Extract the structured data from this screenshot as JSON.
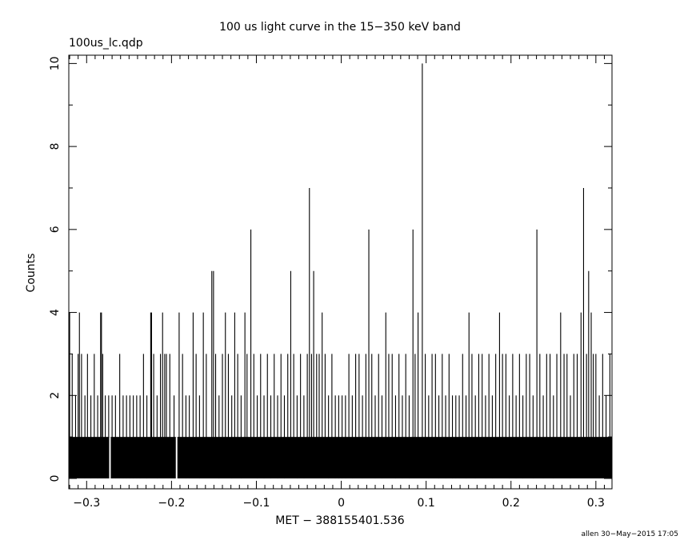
{
  "chart_data": {
    "type": "bar",
    "title": "100 us light curve in the 15−350 keV band",
    "file_label": "100us_lc.qdp",
    "xlabel": "MET − 388155401.536",
    "ylabel": "Counts",
    "footer": "allen 30−May−2015 17:05",
    "xlim": [
      -0.321,
      0.319
    ],
    "ylim": [
      -0.25,
      10.2
    ],
    "x_ticks": [
      {
        "value": -0.3,
        "label": "−0.3"
      },
      {
        "value": -0.2,
        "label": "−0.2"
      },
      {
        "value": -0.1,
        "label": "−0.1"
      },
      {
        "value": 0,
        "label": "0"
      },
      {
        "value": 0.1,
        "label": "0.1"
      },
      {
        "value": 0.2,
        "label": "0.2"
      },
      {
        "value": 0.3,
        "label": "0.3"
      }
    ],
    "y_ticks": [
      {
        "value": 0,
        "label": "0"
      },
      {
        "value": 2,
        "label": "2"
      },
      {
        "value": 4,
        "label": "4"
      },
      {
        "value": 6,
        "label": "6"
      },
      {
        "value": 8,
        "label": "8"
      },
      {
        "value": 10,
        "label": "10"
      }
    ],
    "bin_width": 0.0001,
    "baseline_counts": 1,
    "zero_count_bins": [
      -0.2725,
      -0.194
    ],
    "spikes": [
      {
        "x": -0.32,
        "y": 4
      },
      {
        "x": -0.317,
        "y": 3
      },
      {
        "x": -0.313,
        "y": 2
      },
      {
        "x": -0.31,
        "y": 3
      },
      {
        "x": -0.3085,
        "y": 4
      },
      {
        "x": -0.306,
        "y": 3
      },
      {
        "x": -0.302,
        "y": 2
      },
      {
        "x": -0.299,
        "y": 3
      },
      {
        "x": -0.295,
        "y": 2
      },
      {
        "x": -0.291,
        "y": 3
      },
      {
        "x": -0.287,
        "y": 2
      },
      {
        "x": -0.2835,
        "y": 4
      },
      {
        "x": -0.2825,
        "y": 4
      },
      {
        "x": -0.281,
        "y": 3
      },
      {
        "x": -0.278,
        "y": 2
      },
      {
        "x": -0.274,
        "y": 2
      },
      {
        "x": -0.27,
        "y": 2
      },
      {
        "x": -0.266,
        "y": 2
      },
      {
        "x": -0.261,
        "y": 3
      },
      {
        "x": -0.257,
        "y": 2
      },
      {
        "x": -0.253,
        "y": 2
      },
      {
        "x": -0.249,
        "y": 2
      },
      {
        "x": -0.245,
        "y": 2
      },
      {
        "x": -0.241,
        "y": 2
      },
      {
        "x": -0.237,
        "y": 2
      },
      {
        "x": -0.233,
        "y": 3
      },
      {
        "x": -0.229,
        "y": 2
      },
      {
        "x": -0.2245,
        "y": 4
      },
      {
        "x": -0.2235,
        "y": 4
      },
      {
        "x": -0.221,
        "y": 3
      },
      {
        "x": -0.217,
        "y": 2
      },
      {
        "x": -0.213,
        "y": 3
      },
      {
        "x": -0.2105,
        "y": 4
      },
      {
        "x": -0.208,
        "y": 3
      },
      {
        "x": -0.206,
        "y": 3
      },
      {
        "x": -0.202,
        "y": 3
      },
      {
        "x": -0.197,
        "y": 2
      },
      {
        "x": -0.191,
        "y": 4
      },
      {
        "x": -0.187,
        "y": 3
      },
      {
        "x": -0.183,
        "y": 2
      },
      {
        "x": -0.179,
        "y": 2
      },
      {
        "x": -0.1745,
        "y": 4
      },
      {
        "x": -0.171,
        "y": 3
      },
      {
        "x": -0.167,
        "y": 2
      },
      {
        "x": -0.1625,
        "y": 4
      },
      {
        "x": -0.159,
        "y": 3
      },
      {
        "x": -0.1525,
        "y": 5
      },
      {
        "x": -0.1505,
        "y": 5
      },
      {
        "x": -0.148,
        "y": 3
      },
      {
        "x": -0.144,
        "y": 2
      },
      {
        "x": -0.14,
        "y": 3
      },
      {
        "x": -0.1365,
        "y": 4
      },
      {
        "x": -0.133,
        "y": 3
      },
      {
        "x": -0.129,
        "y": 2
      },
      {
        "x": -0.1255,
        "y": 4
      },
      {
        "x": -0.122,
        "y": 3
      },
      {
        "x": -0.118,
        "y": 2
      },
      {
        "x": -0.1135,
        "y": 4
      },
      {
        "x": -0.111,
        "y": 3
      },
      {
        "x": -0.1065,
        "y": 6
      },
      {
        "x": -0.103,
        "y": 3
      },
      {
        "x": -0.099,
        "y": 2
      },
      {
        "x": -0.095,
        "y": 3
      },
      {
        "x": -0.091,
        "y": 2
      },
      {
        "x": -0.087,
        "y": 3
      },
      {
        "x": -0.083,
        "y": 2
      },
      {
        "x": -0.079,
        "y": 3
      },
      {
        "x": -0.075,
        "y": 2
      },
      {
        "x": -0.071,
        "y": 3
      },
      {
        "x": -0.067,
        "y": 2
      },
      {
        "x": -0.063,
        "y": 3
      },
      {
        "x": -0.0595,
        "y": 5
      },
      {
        "x": -0.056,
        "y": 3
      },
      {
        "x": -0.052,
        "y": 2
      },
      {
        "x": -0.048,
        "y": 3
      },
      {
        "x": -0.044,
        "y": 2
      },
      {
        "x": -0.04,
        "y": 3
      },
      {
        "x": -0.0375,
        "y": 7
      },
      {
        "x": -0.035,
        "y": 3
      },
      {
        "x": -0.0325,
        "y": 5
      },
      {
        "x": -0.029,
        "y": 3
      },
      {
        "x": -0.026,
        "y": 3
      },
      {
        "x": -0.0225,
        "y": 4
      },
      {
        "x": -0.019,
        "y": 3
      },
      {
        "x": -0.015,
        "y": 2
      },
      {
        "x": -0.011,
        "y": 3
      },
      {
        "x": -0.007,
        "y": 2
      },
      {
        "x": -0.003,
        "y": 2
      },
      {
        "x": 0.001,
        "y": 2
      },
      {
        "x": 0.005,
        "y": 2
      },
      {
        "x": 0.009,
        "y": 3
      },
      {
        "x": 0.013,
        "y": 2
      },
      {
        "x": 0.017,
        "y": 3
      },
      {
        "x": 0.021,
        "y": 3
      },
      {
        "x": 0.025,
        "y": 2
      },
      {
        "x": 0.029,
        "y": 3
      },
      {
        "x": 0.0325,
        "y": 6
      },
      {
        "x": 0.036,
        "y": 3
      },
      {
        "x": 0.04,
        "y": 2
      },
      {
        "x": 0.044,
        "y": 3
      },
      {
        "x": 0.048,
        "y": 2
      },
      {
        "x": 0.0525,
        "y": 4
      },
      {
        "x": 0.056,
        "y": 3
      },
      {
        "x": 0.06,
        "y": 3
      },
      {
        "x": 0.064,
        "y": 2
      },
      {
        "x": 0.068,
        "y": 3
      },
      {
        "x": 0.072,
        "y": 2
      },
      {
        "x": 0.076,
        "y": 3
      },
      {
        "x": 0.08,
        "y": 2
      },
      {
        "x": 0.0845,
        "y": 6
      },
      {
        "x": 0.087,
        "y": 3
      },
      {
        "x": 0.0905,
        "y": 4
      },
      {
        "x": 0.0955,
        "y": 10
      },
      {
        "x": 0.099,
        "y": 3
      },
      {
        "x": 0.103,
        "y": 2
      },
      {
        "x": 0.107,
        "y": 3
      },
      {
        "x": 0.111,
        "y": 3
      },
      {
        "x": 0.115,
        "y": 2
      },
      {
        "x": 0.119,
        "y": 3
      },
      {
        "x": 0.123,
        "y": 2
      },
      {
        "x": 0.127,
        "y": 3
      },
      {
        "x": 0.131,
        "y": 2
      },
      {
        "x": 0.135,
        "y": 2
      },
      {
        "x": 0.139,
        "y": 2
      },
      {
        "x": 0.143,
        "y": 3
      },
      {
        "x": 0.147,
        "y": 2
      },
      {
        "x": 0.1505,
        "y": 4
      },
      {
        "x": 0.154,
        "y": 3
      },
      {
        "x": 0.158,
        "y": 2
      },
      {
        "x": 0.162,
        "y": 3
      },
      {
        "x": 0.166,
        "y": 3
      },
      {
        "x": 0.17,
        "y": 2
      },
      {
        "x": 0.174,
        "y": 3
      },
      {
        "x": 0.178,
        "y": 2
      },
      {
        "x": 0.182,
        "y": 3
      },
      {
        "x": 0.1865,
        "y": 4
      },
      {
        "x": 0.19,
        "y": 3
      },
      {
        "x": 0.194,
        "y": 3
      },
      {
        "x": 0.198,
        "y": 2
      },
      {
        "x": 0.202,
        "y": 3
      },
      {
        "x": 0.206,
        "y": 2
      },
      {
        "x": 0.21,
        "y": 3
      },
      {
        "x": 0.214,
        "y": 2
      },
      {
        "x": 0.218,
        "y": 3
      },
      {
        "x": 0.222,
        "y": 3
      },
      {
        "x": 0.226,
        "y": 2
      },
      {
        "x": 0.2305,
        "y": 6
      },
      {
        "x": 0.234,
        "y": 3
      },
      {
        "x": 0.238,
        "y": 2
      },
      {
        "x": 0.242,
        "y": 3
      },
      {
        "x": 0.246,
        "y": 3
      },
      {
        "x": 0.25,
        "y": 2
      },
      {
        "x": 0.254,
        "y": 3
      },
      {
        "x": 0.2585,
        "y": 4
      },
      {
        "x": 0.2625,
        "y": 3
      },
      {
        "x": 0.266,
        "y": 3
      },
      {
        "x": 0.27,
        "y": 2
      },
      {
        "x": 0.274,
        "y": 3
      },
      {
        "x": 0.278,
        "y": 3
      },
      {
        "x": 0.2825,
        "y": 4
      },
      {
        "x": 0.2855,
        "y": 7
      },
      {
        "x": 0.289,
        "y": 3
      },
      {
        "x": 0.2915,
        "y": 5
      },
      {
        "x": 0.2945,
        "y": 4
      },
      {
        "x": 0.297,
        "y": 3
      },
      {
        "x": 0.3,
        "y": 3
      },
      {
        "x": 0.304,
        "y": 2
      },
      {
        "x": 0.308,
        "y": 3
      },
      {
        "x": 0.312,
        "y": 2
      },
      {
        "x": 0.3165,
        "y": 3
      }
    ]
  }
}
